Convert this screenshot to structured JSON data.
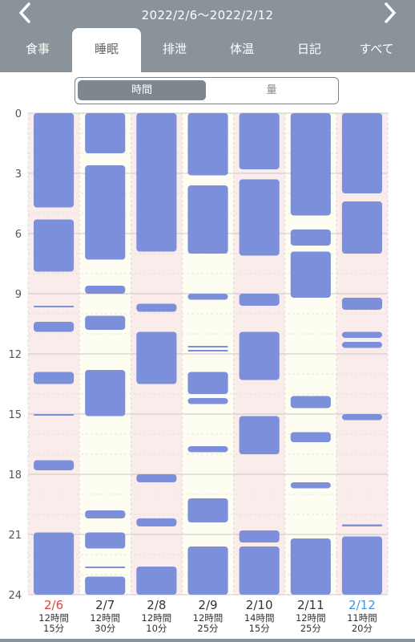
{
  "header": {
    "date_range": "2022/2/6～2022/2/12",
    "prev_icon": "chevron-left-icon",
    "next_icon": "chevron-right-icon",
    "background": "#8a939a"
  },
  "tabs": [
    {
      "label": "食事",
      "active": false
    },
    {
      "label": "睡眠",
      "active": true
    },
    {
      "label": "排泄",
      "active": false
    },
    {
      "label": "体温",
      "active": false
    },
    {
      "label": "日記",
      "active": false
    },
    {
      "label": "すべて",
      "active": false
    }
  ],
  "segmented": {
    "time_label": "時間",
    "amount_label": "量",
    "selected": "時間"
  },
  "colors": {
    "bar": "#7b8fdb",
    "weekend_bg": "#fbecec",
    "weekday_bg": "#fefdf1",
    "sunday_label": "#e0463f",
    "saturday_label": "#4a90e2",
    "weekday_label": "#333333"
  },
  "chart_data": {
    "type": "bar",
    "orientation": "vertical-timeline",
    "y_ticks": [
      "0",
      "3",
      "6",
      "9",
      "12",
      "15",
      "18",
      "21",
      "24"
    ],
    "ylim": [
      0,
      24
    ],
    "days": [
      {
        "date": "2/6",
        "weekday": "sun",
        "total_hours": "12時間",
        "total_minutes": "15分",
        "segments": [
          [
            0,
            4.7
          ],
          [
            5.3,
            7.9
          ],
          [
            9.6,
            9.65
          ],
          [
            10.4,
            10.9
          ],
          [
            12.9,
            13.5
          ],
          [
            15.0,
            15.05
          ],
          [
            17.3,
            17.8
          ],
          [
            20.9,
            24
          ]
        ]
      },
      {
        "date": "2/7",
        "weekday": "mon",
        "total_hours": "12時間",
        "total_minutes": "30分",
        "segments": [
          [
            0,
            2.0
          ],
          [
            2.6,
            7.3
          ],
          [
            8.6,
            9.0
          ],
          [
            10.1,
            10.8
          ],
          [
            12.8,
            15.1
          ],
          [
            19.8,
            20.2
          ],
          [
            20.9,
            21.7
          ],
          [
            22.6,
            22.65
          ],
          [
            23.1,
            24
          ]
        ]
      },
      {
        "date": "2/8",
        "weekday": "tue",
        "total_hours": "12時間",
        "total_minutes": "10分",
        "segments": [
          [
            0,
            6.9
          ],
          [
            9.5,
            9.9
          ],
          [
            10.9,
            13.5
          ],
          [
            18.0,
            18.4
          ],
          [
            20.2,
            20.6
          ],
          [
            22.6,
            24
          ]
        ]
      },
      {
        "date": "2/9",
        "weekday": "wed",
        "total_hours": "12時間",
        "total_minutes": "25分",
        "segments": [
          [
            0,
            3.1
          ],
          [
            3.6,
            7.0
          ],
          [
            9.0,
            9.3
          ],
          [
            11.6,
            11.65
          ],
          [
            11.8,
            11.85
          ],
          [
            12.9,
            14.0
          ],
          [
            14.2,
            14.5
          ],
          [
            16.6,
            16.9
          ],
          [
            19.2,
            20.4
          ],
          [
            21.6,
            24
          ]
        ]
      },
      {
        "date": "2/10",
        "weekday": "thu",
        "total_hours": "14時間",
        "total_minutes": "15分",
        "segments": [
          [
            0,
            2.8
          ],
          [
            3.3,
            7.1
          ],
          [
            9.0,
            9.6
          ],
          [
            10.9,
            13.3
          ],
          [
            15.1,
            17.0
          ],
          [
            20.8,
            21.4
          ],
          [
            21.6,
            24
          ]
        ]
      },
      {
        "date": "2/11",
        "weekday": "fri",
        "total_hours": "12時間",
        "total_minutes": "25分",
        "segments": [
          [
            0,
            5.1
          ],
          [
            5.8,
            6.6
          ],
          [
            6.9,
            9.2
          ],
          [
            14.1,
            14.7
          ],
          [
            15.9,
            16.4
          ],
          [
            18.4,
            18.7
          ],
          [
            21.2,
            24
          ]
        ]
      },
      {
        "date": "2/12",
        "weekday": "sat",
        "total_hours": "11時間",
        "total_minutes": "20分",
        "segments": [
          [
            0,
            4.0
          ],
          [
            4.4,
            7.0
          ],
          [
            9.2,
            9.8
          ],
          [
            10.9,
            11.2
          ],
          [
            11.4,
            11.7
          ],
          [
            15.0,
            15.3
          ],
          [
            20.5,
            20.6
          ],
          [
            21.1,
            24
          ]
        ]
      }
    ]
  }
}
